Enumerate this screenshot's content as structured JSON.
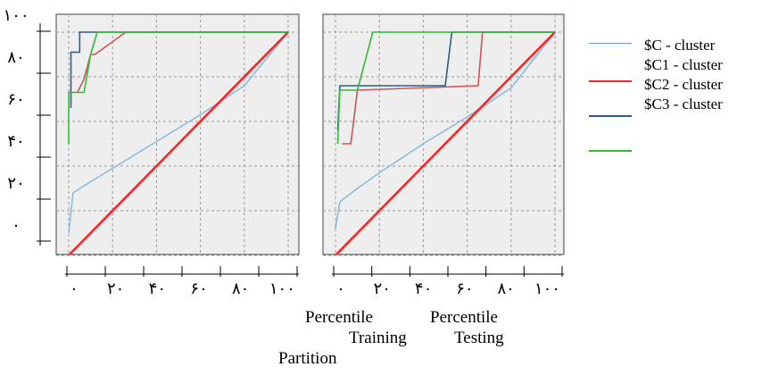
{
  "chart_data": [
    {
      "type": "line",
      "panel": "left",
      "xlim": [
        0,
        100
      ],
      "ylim": [
        0,
        100
      ],
      "x_ticks": [
        "٠",
        "٢٠",
        "۴٠",
        "۶٠",
        "٨٠",
        "١٠٠"
      ],
      "y_ticks": [
        "٠",
        "٢٠",
        "۴٠",
        "۶٠",
        "٨٠",
        "١٠٠"
      ],
      "grid": true,
      "series": [
        {
          "color": "#88bbdd",
          "points": [
            [
              0,
              10
            ],
            [
              2,
              28
            ],
            [
              10,
              33
            ],
            [
              20,
              39
            ],
            [
              40,
              51
            ],
            [
              60,
              63
            ],
            [
              80,
              76
            ],
            [
              100,
              100
            ]
          ]
        },
        {
          "color": "#ff2222",
          "points": [
            [
              -3,
              -3
            ],
            [
              100,
              100
            ]
          ]
        },
        {
          "color": "#cc5555",
          "points": [
            [
              4,
              73
            ],
            [
              7,
              79
            ],
            [
              10,
              90
            ],
            [
              12,
              90
            ],
            [
              26,
              100
            ],
            [
              100,
              100
            ]
          ]
        },
        {
          "color": "#2a5d8e",
          "points": [
            [
              1,
              66
            ],
            [
              1,
              91
            ],
            [
              5,
              91
            ],
            [
              5,
              100
            ],
            [
              100,
              100
            ]
          ]
        },
        {
          "color": "#33bb33",
          "points": [
            [
              0,
              50
            ],
            [
              0,
              73
            ],
            [
              7,
              73
            ],
            [
              10,
              90
            ],
            [
              13,
              100
            ],
            [
              100,
              100
            ]
          ]
        }
      ]
    },
    {
      "type": "line",
      "panel": "right",
      "xlim": [
        0,
        100
      ],
      "ylim": [
        0,
        100
      ],
      "x_ticks": [
        "٠",
        "٢٠",
        "۴٠",
        "۶٠",
        "٨٠",
        "١٠٠"
      ],
      "grid": true,
      "series": [
        {
          "color": "#88bbdd",
          "points": [
            [
              0,
              12
            ],
            [
              2,
              24
            ],
            [
              10,
              30
            ],
            [
              20,
              37
            ],
            [
              40,
              50
            ],
            [
              60,
              62
            ],
            [
              80,
              75
            ],
            [
              100,
              100
            ]
          ]
        },
        {
          "color": "#ff2222",
          "points": [
            [
              -3,
              -3
            ],
            [
              100,
              100
            ]
          ]
        },
        {
          "color": "#cc5555",
          "points": [
            [
              3,
              50
            ],
            [
              7,
              50
            ],
            [
              10,
              74
            ],
            [
              65,
              76
            ],
            [
              67,
              100
            ],
            [
              100,
              100
            ]
          ]
        },
        {
          "color": "#2a5d8e",
          "points": [
            [
              1,
              56
            ],
            [
              2,
              76
            ],
            [
              50,
              76
            ],
            [
              53,
              100
            ],
            [
              100,
              100
            ]
          ]
        },
        {
          "color": "#33bb33",
          "points": [
            [
              1,
              50
            ],
            [
              2,
              74
            ],
            [
              10,
              74
            ],
            [
              17,
              100
            ],
            [
              100,
              100
            ]
          ]
        }
      ]
    }
  ],
  "legend": [
    {
      "label": "$C - cluster",
      "color": "#6699cc"
    },
    {
      "label": "$C1 - cluster",
      "color": "#ff2222"
    },
    {
      "label": "$C2 - cluster",
      "color": "#2a5d8e"
    },
    {
      "label": "$C3 - cluster",
      "color": "#33bb33"
    }
  ],
  "axis_text": {
    "percentile_left": "Percentile",
    "percentile_right": "Percentile",
    "training": "Training",
    "testing": "Testing",
    "partition": "Partition"
  }
}
